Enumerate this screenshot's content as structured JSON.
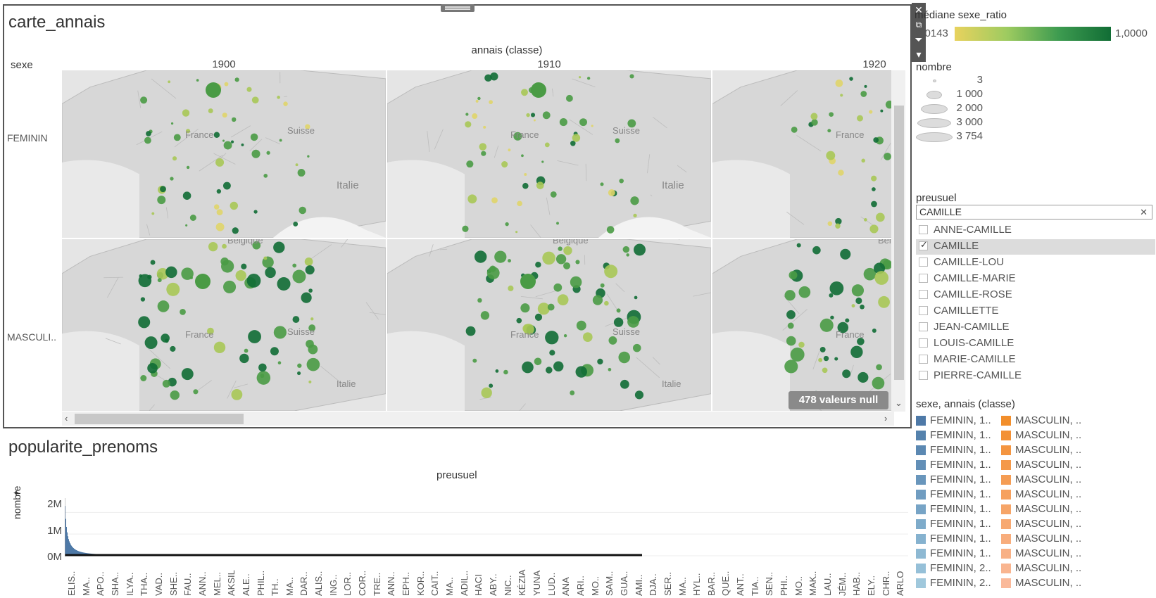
{
  "map_sheet": {
    "title": "carte_annais",
    "column_field": "annais (classe)",
    "row_field": "sexe",
    "columns": [
      "1900",
      "1910",
      "1920"
    ],
    "rows": [
      "FEMININ",
      "MASCULI.."
    ],
    "place_labels": {
      "france": "France",
      "suisse": "Suisse",
      "italie": "Italie",
      "belgique": "Belgique"
    },
    "null_badge": "478 valeurs null",
    "bubble_colors": {
      "high": "#116d35",
      "mid": "#4a9b45",
      "low": "#a9c857",
      "lowest": "#e0d56a"
    }
  },
  "toolbar": {
    "icons": [
      "close-icon",
      "popout-icon",
      "filter-icon",
      "more-options-icon"
    ],
    "glyphs": {
      "close": "✕",
      "popout": "⧉",
      "filter": "⏷",
      "more": "▾"
    }
  },
  "color_legend": {
    "title": "médiane sexe_ratio",
    "min_label": "0,0143",
    "max_label": "1,0000"
  },
  "size_legend": {
    "title": "nombre",
    "items": [
      "3",
      "1 000",
      "2 000",
      "3 000",
      "3 754"
    ]
  },
  "filter": {
    "title": "preusuel",
    "search_value": "CAMILLE",
    "clear_glyph": "✕",
    "options": [
      {
        "label": "ANNE-CAMILLE",
        "checked": false
      },
      {
        "label": "CAMILLE",
        "checked": true
      },
      {
        "label": "CAMILLE-LOU",
        "checked": false
      },
      {
        "label": "CAMILLE-MARIE",
        "checked": false
      },
      {
        "label": "CAMILLE-ROSE",
        "checked": false
      },
      {
        "label": "CAMILLETTE",
        "checked": false
      },
      {
        "label": "JEAN-CAMILLE",
        "checked": false
      },
      {
        "label": "LOUIS-CAMILLE",
        "checked": false
      },
      {
        "label": "MARIE-CAMILLE",
        "checked": false
      },
      {
        "label": "PIERRE-CAMILLE",
        "checked": false
      }
    ]
  },
  "series_legend": {
    "title": "sexe, annais (classe)",
    "left": [
      {
        "label": "FEMININ, 1..",
        "color": "#4e79a7"
      },
      {
        "label": "FEMININ, 1..",
        "color": "#5582ad"
      },
      {
        "label": "FEMININ, 1..",
        "color": "#5b88b2"
      },
      {
        "label": "FEMININ, 1..",
        "color": "#628fb7"
      },
      {
        "label": "FEMININ, 1..",
        "color": "#6996bc"
      },
      {
        "label": "FEMININ, 1..",
        "color": "#709dc1"
      },
      {
        "label": "FEMININ, 1..",
        "color": "#77a4c6"
      },
      {
        "label": "FEMININ, 1..",
        "color": "#7eabca"
      },
      {
        "label": "FEMININ, 1..",
        "color": "#86b2cf"
      },
      {
        "label": "FEMININ, 1..",
        "color": "#8eb9d3"
      },
      {
        "label": "FEMININ, 2..",
        "color": "#96c0d8"
      },
      {
        "label": "FEMININ, 2..",
        "color": "#a0c8dc"
      }
    ],
    "right": [
      {
        "label": "MASCULIN, ..",
        "color": "#f28e2b"
      },
      {
        "label": "MASCULIN, ..",
        "color": "#f39136"
      },
      {
        "label": "MASCULIN, ..",
        "color": "#f49540"
      },
      {
        "label": "MASCULIN, ..",
        "color": "#f4994a"
      },
      {
        "label": "MASCULIN, ..",
        "color": "#f59d54"
      },
      {
        "label": "MASCULIN, ..",
        "color": "#f6a15e"
      },
      {
        "label": "MASCULIN, ..",
        "color": "#f6a568"
      },
      {
        "label": "MASCULIN, ..",
        "color": "#f7a972"
      },
      {
        "label": "MASCULIN, ..",
        "color": "#f8ad7c"
      },
      {
        "label": "MASCULIN, ..",
        "color": "#f8b186"
      },
      {
        "label": "MASCULIN, ..",
        "color": "#f9b590"
      },
      {
        "label": "MASCULIN, ..",
        "color": "#fab99a"
      }
    ]
  },
  "bar_sheet": {
    "title": "popularite_prenoms",
    "pin_glyph": "📌",
    "chart_data": {
      "type": "bar",
      "xlabel": "preusuel",
      "ylabel": "nombre",
      "ytick_labels": [
        "2M",
        "1M",
        "0M"
      ],
      "ylim": [
        0,
        2400000
      ],
      "peak_value": 2300000,
      "categories": [
        "ELIS..",
        "MA..",
        "APO..",
        "SHA..",
        "ILYA..",
        "THA..",
        "VAD..",
        "SHE..",
        "FAU..",
        "ANN..",
        "MEL..",
        "AKSIL",
        "ALE..",
        "PHIL..",
        "TH..",
        "MA..",
        "DAR..",
        "ALIS..",
        "ING..",
        "LOR..",
        "COR..",
        "TRE..",
        "ANN..",
        "EPH..",
        "KOR..",
        "CAIT..",
        "MA..",
        "ADIL..",
        "HACI",
        "ABY..",
        "NIC..",
        "KÉZIA",
        "YUNA",
        "LUD..",
        "ANA",
        "ARI..",
        "MO..",
        "SAM..",
        "GUA..",
        "AMI..",
        "DJA..",
        "SER..",
        "MA..",
        "HYL..",
        "BAR..",
        "QUE..",
        "ANT..",
        "TIA..",
        "SEN..",
        "PHI..",
        "MO..",
        "MAK..",
        "LAU..",
        "JÉM..",
        "HAB..",
        "ELY..",
        "CHR..",
        "ARLO"
      ]
    }
  }
}
